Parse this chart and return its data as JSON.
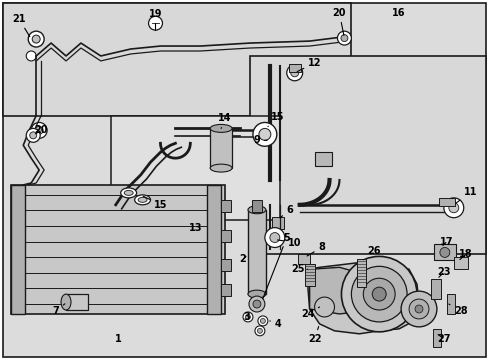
{
  "bg_color": "#ffffff",
  "fill_gray": "#e8e8e8",
  "fill_light": "#f0f0f0",
  "line_color": "#1a1a1a",
  "lw_main": 1.3,
  "lw_thin": 0.8,
  "lw_thick": 2.0,
  "fig_w": 4.89,
  "fig_h": 3.6,
  "dpi": 100
}
